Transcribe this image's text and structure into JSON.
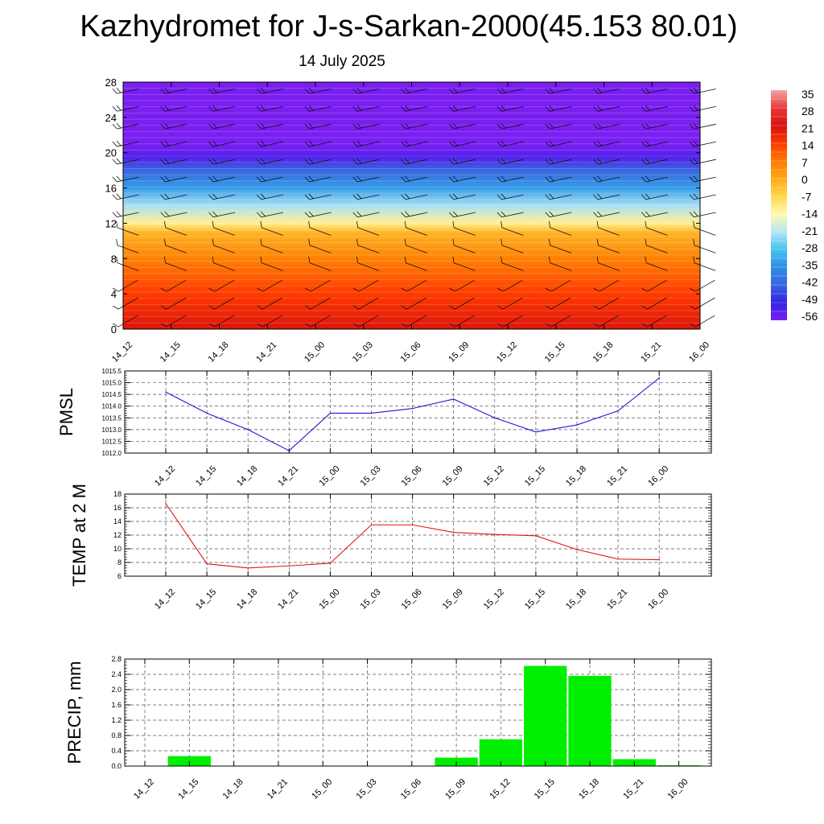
{
  "page": {
    "title": "Kazhydromet for J-s-Sarkan-2000(45.153 80.01)",
    "date": "14 July 2025"
  },
  "chart_data": [
    {
      "type": "heatmap",
      "ylim": [
        0,
        28
      ],
      "y_ticks": [
        "0",
        "4",
        "8",
        "12",
        "16",
        "20",
        "24",
        "28"
      ],
      "x_ticks": [
        "14_12",
        "14_15",
        "14_18",
        "14_21",
        "15_00",
        "15_03",
        "15_06",
        "15_09",
        "15_12",
        "15_15",
        "15_18",
        "15_21",
        "16_00"
      ],
      "colorbar": {
        "labels": [
          "35",
          "28",
          "21",
          "14",
          "7",
          "0",
          "-7",
          "-14",
          "-21",
          "-28",
          "-35",
          "-42",
          "-49",
          "-56"
        ],
        "colors": [
          "#f4a6a6",
          "#e83a3a",
          "#d90f0f",
          "#ff3a00",
          "#ff7a00",
          "#ffa81a",
          "#ffd84a",
          "#fffab0",
          "#b8e6f5",
          "#47c2f0",
          "#2f8ee6",
          "#3866e0",
          "#3322e6",
          "#7a1ff0"
        ]
      },
      "temperature_profile": {
        "heights": [
          0,
          4,
          8,
          11,
          12,
          14,
          16,
          18,
          19.5,
          21,
          22,
          28
        ],
        "values": [
          20,
          14,
          6,
          -2,
          -12,
          -22,
          -33,
          -42,
          -52,
          -58,
          -60,
          -60
        ]
      }
    },
    {
      "type": "line",
      "ylabel": "PMSL",
      "ylim": [
        1012.0,
        1015.5
      ],
      "y_ticks": [
        "1012.0",
        "1012.5",
        "1013.0",
        "1013.5",
        "1014.0",
        "1014.5",
        "1015.0",
        "1015.5"
      ],
      "categories": [
        "14_12",
        "14_15",
        "14_18",
        "14_21",
        "15_00",
        "15_03",
        "15_06",
        "15_09",
        "15_12",
        "15_15",
        "15_18",
        "15_21",
        "16_00"
      ],
      "values": [
        1014.6,
        1013.7,
        1013.0,
        1012.1,
        1013.7,
        1013.7,
        1013.9,
        1014.3,
        1013.5,
        1012.9,
        1013.2,
        1013.8,
        1015.2
      ],
      "color": "#1a1ad9"
    },
    {
      "type": "line",
      "ylabel": "TEMP at 2 M",
      "ylim": [
        6,
        18
      ],
      "y_ticks": [
        "6",
        "8",
        "10",
        "12",
        "14",
        "16",
        "18"
      ],
      "categories": [
        "14_12",
        "14_15",
        "14_18",
        "14_21",
        "15_00",
        "15_03",
        "15_06",
        "15_09",
        "15_12",
        "15_15",
        "15_18",
        "15_21",
        "16_00"
      ],
      "values": [
        16.6,
        7.8,
        7.2,
        7.5,
        7.9,
        13.5,
        13.5,
        12.4,
        12.1,
        11.9,
        9.9,
        8.5,
        8.4
      ],
      "color": "#e01414"
    },
    {
      "type": "bar",
      "ylabel": "PRECIP, mm",
      "ylim": [
        0,
        2.8
      ],
      "y_ticks": [
        "0.0",
        "0.4",
        "0.8",
        "1.2",
        "1.6",
        "2.0",
        "2.4",
        "2.8"
      ],
      "categories": [
        "14_12",
        "14_15",
        "14_18",
        "14_21",
        "15_00",
        "15_03",
        "15_06",
        "15_09",
        "15_12",
        "15_15",
        "15_18",
        "15_21",
        "16_00"
      ],
      "values": [
        0.0,
        0.26,
        0.0,
        0.0,
        0.0,
        0.0,
        0.0,
        0.22,
        0.7,
        2.62,
        2.36,
        0.18,
        0.02
      ],
      "color": "#00ee00"
    }
  ]
}
